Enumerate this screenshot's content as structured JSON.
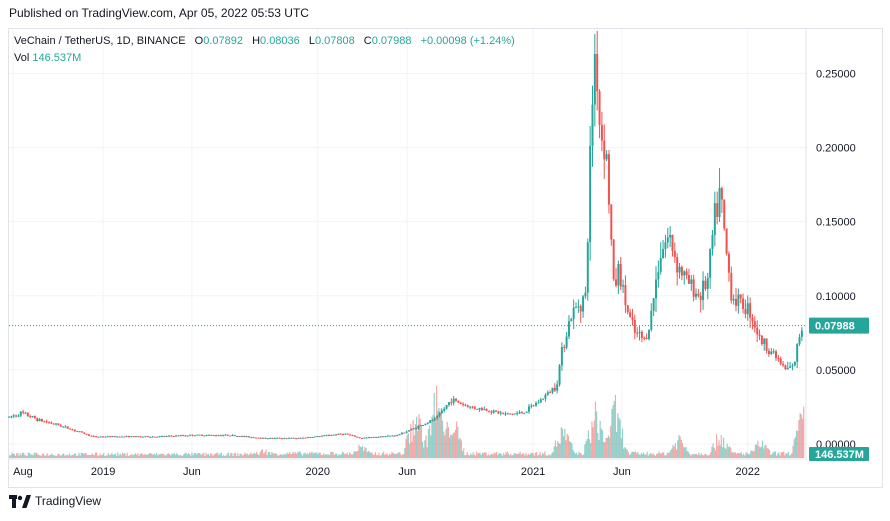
{
  "header": {
    "published": "Published on TradingView.com, Apr 05, 2022 05:53 UTC"
  },
  "legend": {
    "symbol": "VeChain / TetherUS, 1D, BINANCE",
    "open_label": "O",
    "open": "0.07892",
    "high_label": "H",
    "high": "0.08036",
    "low_label": "L",
    "low": "0.07808",
    "close_label": "C",
    "close": "0.07988",
    "change": "+0.00098 (+1.24%)",
    "vol_label": "Vol",
    "vol": "146.537M"
  },
  "footer": {
    "brand": "TradingView"
  },
  "colors": {
    "up": "#26a69a",
    "down": "#ef5350",
    "grid": "#f0f3fa",
    "axis_text": "#131722",
    "price_tag": "#26a69a"
  },
  "chart_data": {
    "type": "candlestick",
    "symbol": "VET/USDT",
    "exchange": "BINANCE",
    "interval": "1D",
    "ylim": [
      0,
      0.28
    ],
    "y_ticks": [
      0.0,
      0.05,
      0.1,
      0.15,
      0.2,
      0.25
    ],
    "y_tick_labels": [
      "0.00000",
      "0.05000",
      "0.10000",
      "0.15000",
      "0.20000",
      "0.25000"
    ],
    "x_tick_labels": [
      "Aug",
      "2019",
      "Jun",
      "2020",
      "Jun",
      "2021",
      "Jun",
      "2022"
    ],
    "x_tick_dates": [
      "2018-08-01",
      "2019-01-01",
      "2019-06-01",
      "2020-01-01",
      "2020-06-01",
      "2021-01-01",
      "2021-06-01",
      "2022-01-01"
    ],
    "last_price": 0.07988,
    "last_price_label": "0.07988",
    "last_volume_label": "146.537M",
    "price_series": {
      "dates": [
        "2018-07-25",
        "2018-08-15",
        "2018-09-15",
        "2018-10-15",
        "2018-11-15",
        "2018-12-15",
        "2019-02-01",
        "2019-04-01",
        "2019-06-01",
        "2019-08-01",
        "2019-10-01",
        "2019-12-01",
        "2020-02-15",
        "2020-03-13",
        "2020-04-15",
        "2020-05-15",
        "2020-06-15",
        "2020-07-20",
        "2020-08-15",
        "2020-09-15",
        "2020-10-15",
        "2020-11-15",
        "2020-12-15",
        "2021-01-15",
        "2021-02-10",
        "2021-02-20",
        "2021-03-05",
        "2021-03-20",
        "2021-04-01",
        "2021-04-10",
        "2021-04-17",
        "2021-04-25",
        "2021-05-05",
        "2021-05-19",
        "2021-05-25",
        "2021-06-10",
        "2021-06-22",
        "2021-07-10",
        "2021-07-20",
        "2021-08-05",
        "2021-08-20",
        "2021-09-05",
        "2021-09-20",
        "2021-10-10",
        "2021-10-25",
        "2021-11-05",
        "2021-11-15",
        "2021-11-25",
        "2021-12-05",
        "2021-12-20",
        "2022-01-05",
        "2022-01-22",
        "2022-02-05",
        "2022-02-20",
        "2022-03-05",
        "2022-03-20",
        "2022-04-01",
        "2022-04-05"
      ],
      "close": [
        0.018,
        0.021,
        0.016,
        0.013,
        0.009,
        0.005,
        0.005,
        0.005,
        0.006,
        0.006,
        0.004,
        0.004,
        0.007,
        0.004,
        0.005,
        0.006,
        0.011,
        0.017,
        0.03,
        0.025,
        0.023,
        0.02,
        0.021,
        0.03,
        0.04,
        0.065,
        0.085,
        0.095,
        0.1,
        0.22,
        0.27,
        0.21,
        0.2,
        0.1,
        0.12,
        0.09,
        0.075,
        0.07,
        0.085,
        0.13,
        0.14,
        0.12,
        0.11,
        0.1,
        0.11,
        0.15,
        0.17,
        0.13,
        0.1,
        0.095,
        0.09,
        0.07,
        0.065,
        0.058,
        0.05,
        0.052,
        0.078,
        0.08
      ]
    },
    "volume_series": {
      "dates": [
        "2019-10-01",
        "2020-03-13",
        "2020-06-15",
        "2020-07-20",
        "2020-08-15",
        "2021-02-20",
        "2021-04-17",
        "2021-05-19",
        "2021-09-05",
        "2021-11-15",
        "2022-01-22",
        "2022-04-05"
      ],
      "values_relative": [
        0.1,
        0.15,
        0.55,
        0.75,
        0.5,
        0.35,
        0.55,
        0.6,
        0.25,
        0.3,
        0.2,
        0.55
      ]
    },
    "grid": true
  }
}
